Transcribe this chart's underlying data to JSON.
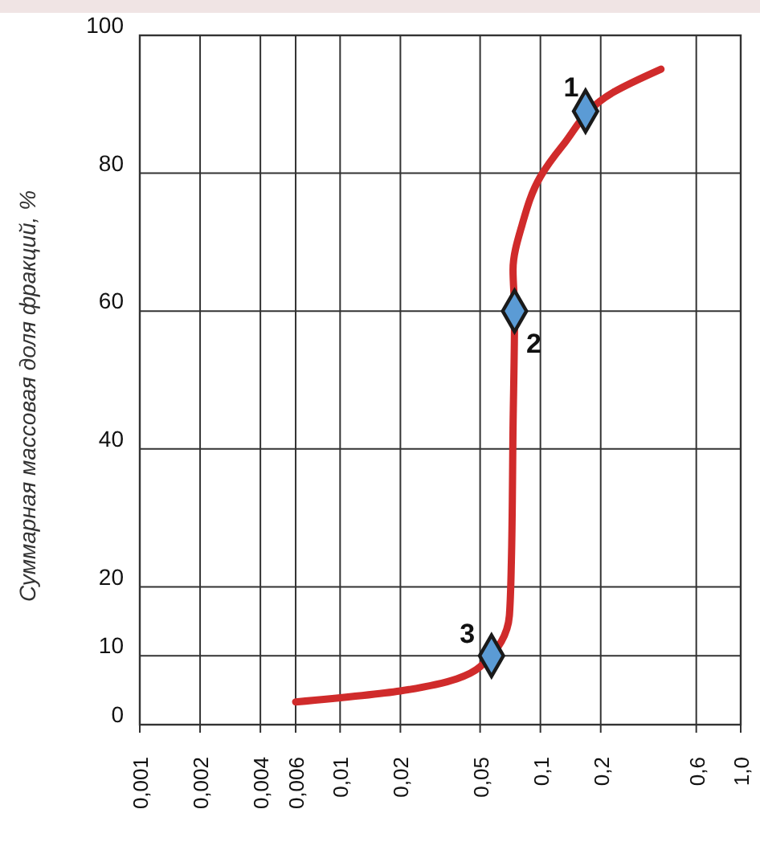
{
  "chart_data": {
    "type": "line",
    "ylabel": "Суммарная массовая доля фракций, %",
    "xlim": [
      0.001,
      1
    ],
    "ylim": [
      0,
      100
    ],
    "xticks": [
      {
        "value": 0.001,
        "label": "0,001"
      },
      {
        "value": 0.002,
        "label": "0,002"
      },
      {
        "value": 0.004,
        "label": "0,004"
      },
      {
        "value": 0.006,
        "label": "0,006"
      },
      {
        "value": 0.01,
        "label": "0,01"
      },
      {
        "value": 0.02,
        "label": "0,02"
      },
      {
        "value": 0.05,
        "label": "0,05"
      },
      {
        "value": 0.1,
        "label": "0,1"
      },
      {
        "value": 0.2,
        "label": "0,2"
      },
      {
        "value": 0.6,
        "label": "0,6"
      },
      {
        "value": 1,
        "label": "1,0"
      }
    ],
    "yticks": [
      0,
      10,
      20,
      40,
      60,
      80,
      100
    ],
    "grid": true,
    "log": "x",
    "series": [
      {
        "color": "#d02b2b",
        "line_style": "solid",
        "marker": "none",
        "x": [
          0.006,
          0.02,
          0.05,
          0.07,
          0.0716,
          0.073,
          0.0743,
          0.073,
          0.081,
          0.1,
          0.129,
          0.233,
          0.4
        ],
        "values": [
          3.3,
          4.9,
          8.4,
          15.8,
          23.5,
          43,
          60,
          66,
          72.5,
          79.5,
          84,
          91.8,
          95.1
        ]
      },
      {
        "type": "scatter",
        "color": "#5b9bd5",
        "marker": "diamond",
        "x": [
          0.168,
          0.0743,
          0.057
        ],
        "values": [
          89,
          60,
          10
        ]
      }
    ],
    "annotations": [
      {
        "text": "1",
        "x": 0.168,
        "y": 89
      },
      {
        "text": "2",
        "x": 0.0743,
        "y": 60
      },
      {
        "text": "3",
        "x": 0.057,
        "y": 10
      }
    ]
  }
}
